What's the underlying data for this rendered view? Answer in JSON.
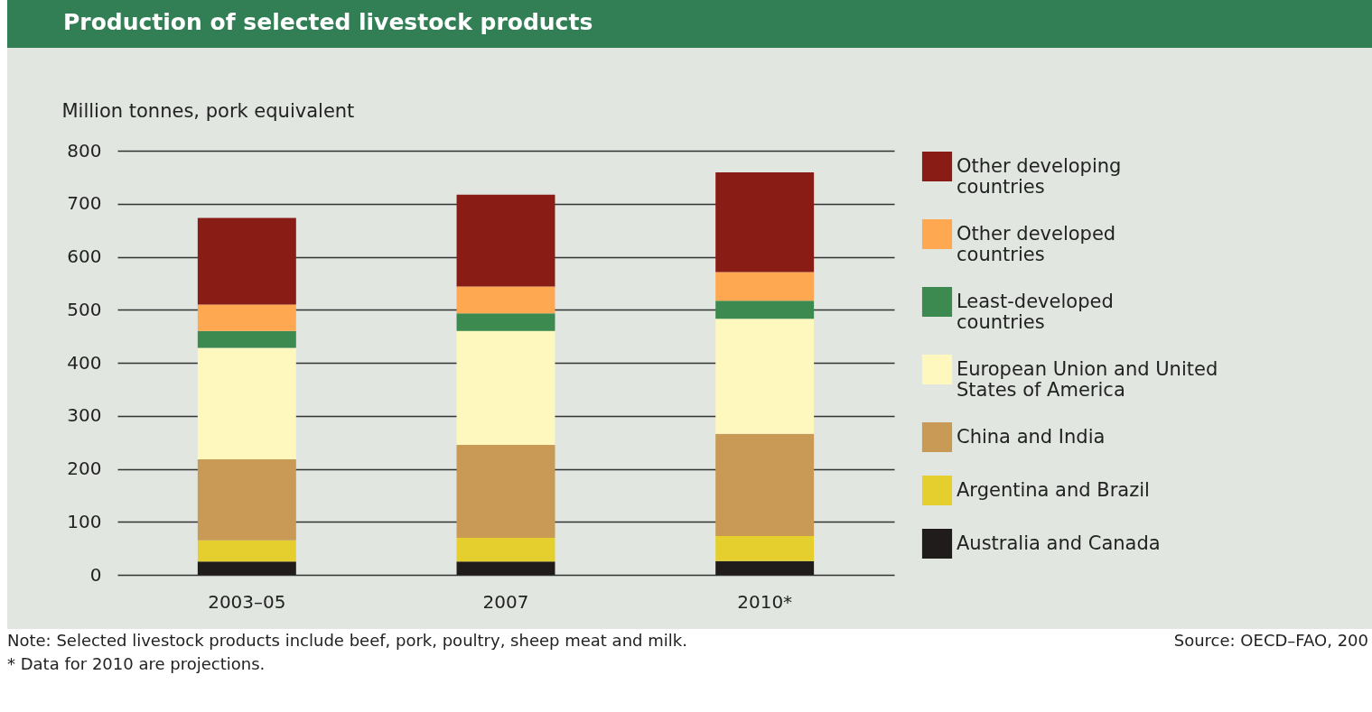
{
  "chart_data": {
    "type": "bar",
    "stacked": true,
    "title": "Production of selected livestock products",
    "ylabel": "Million tonnes, pork equivalent",
    "categories": [
      "2003–05",
      "2007",
      "2010*"
    ],
    "series": [
      {
        "name": "Australia and Canada",
        "color": "#201c1b",
        "values": [
          25,
          25,
          26
        ]
      },
      {
        "name": "Argentina and Brazil",
        "color": "#e5cf2e",
        "values": [
          40,
          45,
          47
        ]
      },
      {
        "name": "China and India",
        "color": "#c89a55",
        "values": [
          153,
          175,
          193
        ]
      },
      {
        "name": "European Union and United States of America",
        "color": "#fef8bf",
        "values": [
          210,
          215,
          217
        ]
      },
      {
        "name": "Least-developed countries",
        "color": "#3c8a50",
        "values": [
          32,
          33,
          34
        ]
      },
      {
        "name": "Other developed countries",
        "color": "#ffa852",
        "values": [
          50,
          51,
          54
        ]
      },
      {
        "name": "Other developing countries",
        "color": "#8a1c16",
        "values": [
          163,
          173,
          188
        ]
      }
    ],
    "ylim": [
      0,
      800
    ],
    "yticks": [
      0,
      100,
      200,
      300,
      400,
      500,
      600,
      700,
      800
    ],
    "grid": "y",
    "legend": "right",
    "annotations": [
      "Note: Selected livestock products include beef, pork, poultry, sheep meat and milk.",
      "* Data for 2010 are projections.",
      "Source: OECD–FAO, 200"
    ]
  }
}
